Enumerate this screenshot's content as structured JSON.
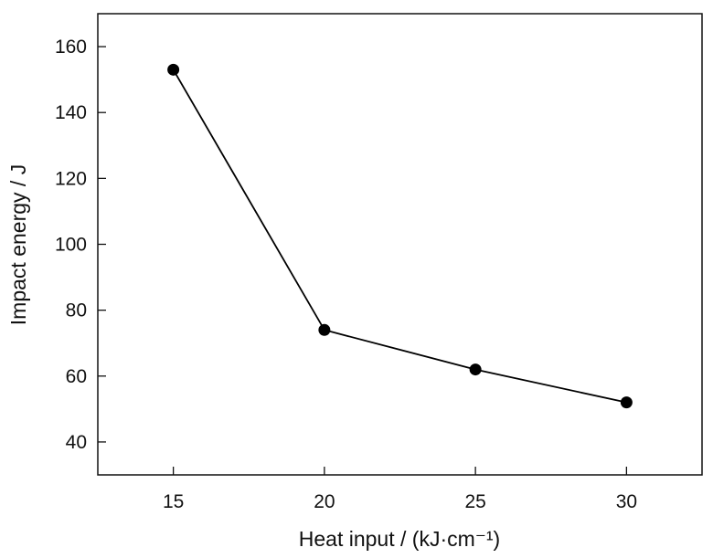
{
  "chart_data": {
    "type": "line",
    "title": "",
    "xlabel": "Heat input / (kJ·cm⁻¹)",
    "ylabel": "Impact energy / J",
    "x": [
      15,
      20,
      25,
      30
    ],
    "series": [
      {
        "name": "Impact energy",
        "values": [
          153,
          74,
          62,
          52
        ]
      }
    ],
    "xticks": [
      15,
      20,
      25,
      30
    ],
    "yticks": [
      40,
      60,
      80,
      100,
      120,
      140,
      160
    ],
    "xlim": [
      12.5,
      32.5
    ],
    "ylim": [
      30,
      170
    ],
    "grid": false,
    "legend": "none",
    "color": "#000000"
  }
}
